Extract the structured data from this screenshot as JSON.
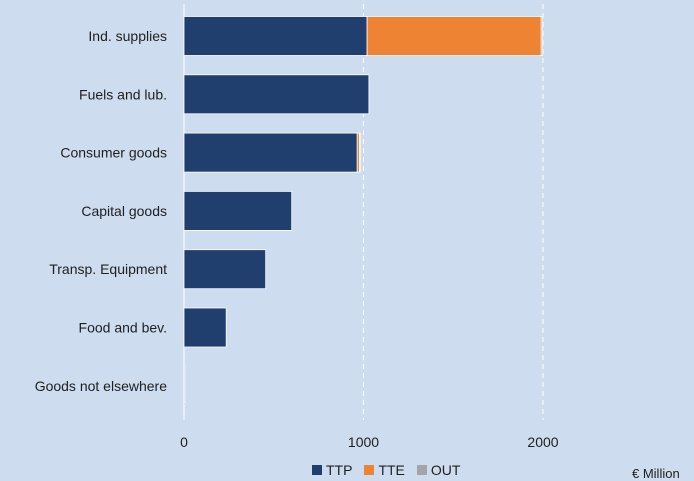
{
  "chart_data": {
    "type": "bar",
    "orientation": "horizontal",
    "stacked": true,
    "categories": [
      "Ind. supplies",
      "Fuels and lub.",
      "Consumer goods",
      "Capital goods",
      "Transp. Equipment",
      "Food and bev.",
      "Goods not elsewhere"
    ],
    "series": [
      {
        "name": "TTP",
        "color": "#203f6e",
        "values": [
          1020,
          1030,
          965,
          600,
          455,
          235,
          5
        ]
      },
      {
        "name": "TTE",
        "color": "#ee8433",
        "values": [
          970,
          0,
          12,
          0,
          0,
          0,
          0
        ]
      },
      {
        "name": "OUT",
        "color": "#a5a5a5",
        "values": [
          8,
          0,
          3,
          0,
          0,
          0,
          0
        ]
      }
    ],
    "xlim": [
      0,
      2600
    ],
    "xticks": [
      0,
      1000,
      2000
    ],
    "grid": true,
    "legend_position": "bottom",
    "unit_label": "€ Million"
  }
}
